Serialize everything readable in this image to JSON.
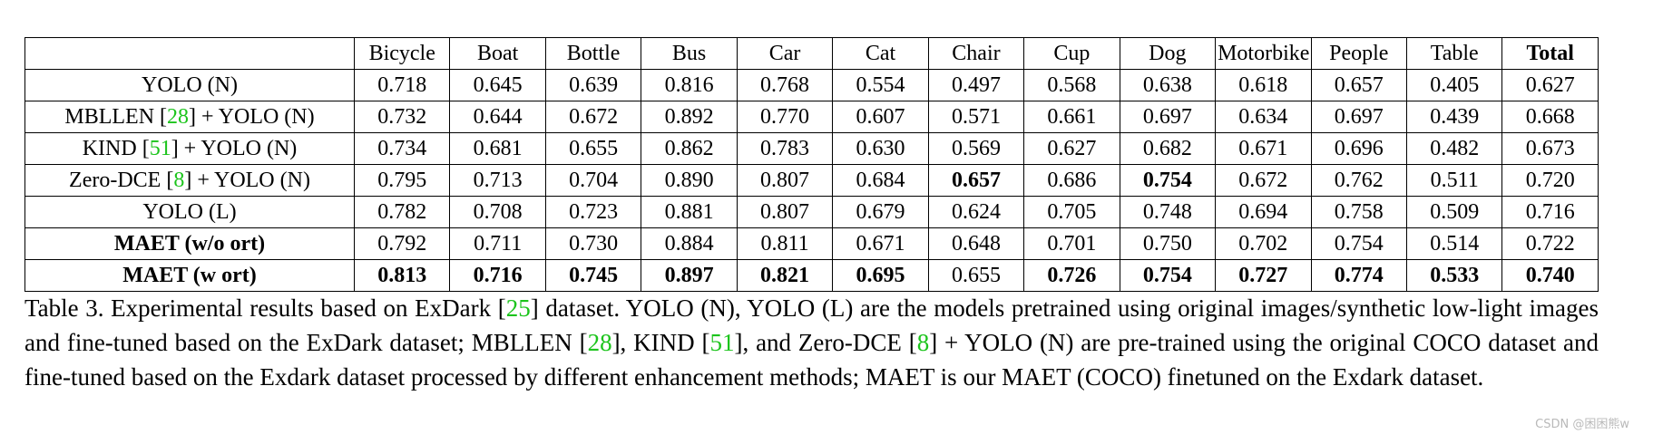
{
  "table": {
    "columns": [
      "Bicycle",
      "Boat",
      "Bottle",
      "Bus",
      "Car",
      "Cat",
      "Chair",
      "Cup",
      "Dog",
      "Motorbike",
      "People",
      "Table",
      "Total"
    ],
    "rows": [
      {
        "method": [
          "YOLO (N)"
        ],
        "values": [
          "0.718",
          "0.645",
          "0.639",
          "0.816",
          "0.768",
          "0.554",
          "0.497",
          "0.568",
          "0.638",
          "0.618",
          "0.657",
          "0.405",
          "0.627"
        ],
        "bold": []
      },
      {
        "method": [
          "MBLLEN [",
          "28",
          "] + YOLO (N)"
        ],
        "values": [
          "0.732",
          "0.644",
          "0.672",
          "0.892",
          "0.770",
          "0.607",
          "0.571",
          "0.661",
          "0.697",
          "0.634",
          "0.697",
          "0.439",
          "0.668"
        ],
        "bold": []
      },
      {
        "method": [
          "KIND [",
          "51",
          "] + YOLO (N)"
        ],
        "values": [
          "0.734",
          "0.681",
          "0.655",
          "0.862",
          "0.783",
          "0.630",
          "0.569",
          "0.627",
          "0.682",
          "0.671",
          "0.696",
          "0.482",
          "0.673"
        ],
        "bold": []
      },
      {
        "method": [
          "Zero-DCE [",
          "8",
          "] + YOLO (N)"
        ],
        "values": [
          "0.795",
          "0.713",
          "0.704",
          "0.890",
          "0.807",
          "0.684",
          "0.657",
          "0.686",
          "0.754",
          "0.672",
          "0.762",
          "0.511",
          "0.720"
        ],
        "bold": [
          6,
          8
        ]
      },
      {
        "method": [
          "YOLO (L)"
        ],
        "values": [
          "0.782",
          "0.708",
          "0.723",
          "0.881",
          "0.807",
          "0.679",
          "0.624",
          "0.705",
          "0.748",
          "0.694",
          "0.758",
          "0.509",
          "0.716"
        ],
        "bold": []
      },
      {
        "method": [
          "MAET (w/o ort)"
        ],
        "method_bold": true,
        "values": [
          "0.792",
          "0.711",
          "0.730",
          "0.884",
          "0.811",
          "0.671",
          "0.648",
          "0.701",
          "0.750",
          "0.702",
          "0.754",
          "0.514",
          "0.722"
        ],
        "bold": []
      },
      {
        "method": [
          "MAET (w ort)"
        ],
        "method_bold": true,
        "values": [
          "0.813",
          "0.716",
          "0.745",
          "0.897",
          "0.821",
          "0.695",
          "0.655",
          "0.726",
          "0.754",
          "0.727",
          "0.774",
          "0.533",
          "0.740"
        ],
        "bold": [
          0,
          1,
          2,
          3,
          4,
          5,
          7,
          8,
          9,
          10,
          11,
          12
        ]
      }
    ]
  },
  "caption": {
    "part1": "Table 3. Experimental results based on ExDark  [",
    "cite1": "25",
    "part2": "] dataset.  YOLO (N), YOLO (L) are the models pretrained using original images/synthetic low-light images and fine-tuned based on the ExDark dataset; MBLLEN [",
    "cite2": "28",
    "part3": "], KIND [",
    "cite3": "51",
    "part4": "], and Zero-DCE [",
    "cite4": "8",
    "part5": "] + YOLO (N) are pre-trained using the original COCO dataset and fine-tuned based on the Exdark dataset processed by different enhancement methods; MAET is our MAET (COCO) finetuned on the Exdark dataset."
  },
  "watermark": "CSDN @困困熊w",
  "colors": {
    "citation": "#1cc41c",
    "watermark": "#b9b9b9"
  }
}
